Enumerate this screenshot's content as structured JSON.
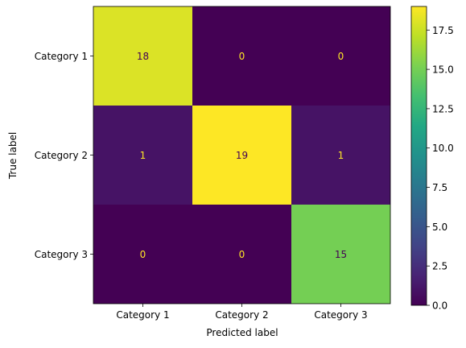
{
  "chart_data": {
    "type": "heatmap",
    "title": "",
    "xlabel": "Predicted label",
    "ylabel": "True label",
    "x_categories": [
      "Category 1",
      "Category 2",
      "Category 3"
    ],
    "y_categories": [
      "Category 1",
      "Category 2",
      "Category 3"
    ],
    "values": [
      [
        18,
        0,
        0
      ],
      [
        1,
        19,
        1
      ],
      [
        0,
        0,
        15
      ]
    ],
    "colormap": "viridis",
    "color_range": [
      0,
      19
    ],
    "colorbar_ticks": [
      "0.0",
      "2.5",
      "5.0",
      "7.5",
      "10.0",
      "12.5",
      "15.0",
      "17.5"
    ],
    "grid": false,
    "colors": {
      "low_text": "#fde725",
      "high_text": "#440154"
    }
  }
}
